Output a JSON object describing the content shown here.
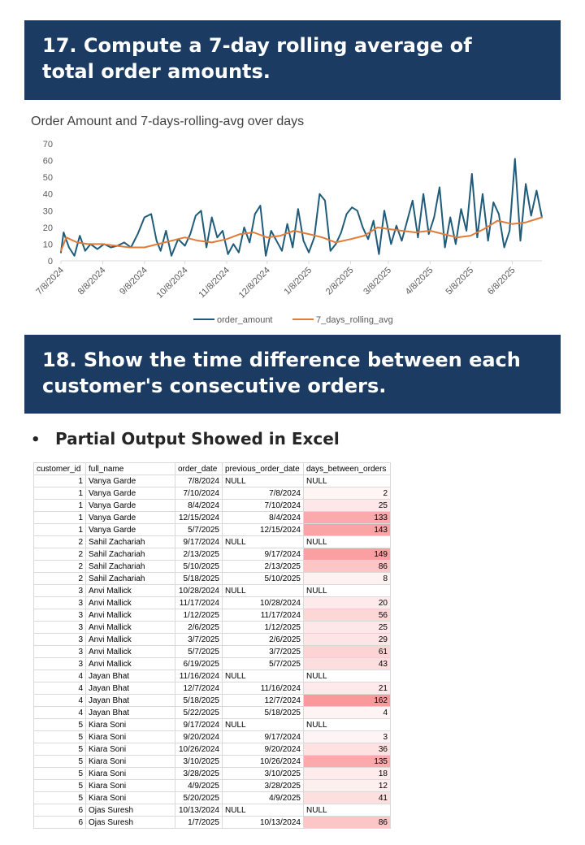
{
  "section17": {
    "title_line1": "17. Compute a 7-day rolling average of",
    "title_line2": "total order amounts."
  },
  "section18": {
    "title_line1": "18. Show the time difference between each",
    "title_line2": "customer's consecutive orders."
  },
  "bullet": {
    "symbol": "•",
    "text": "Partial Output Showed in Excel"
  },
  "colors": {
    "banner_bg": "#1b3b63",
    "order_amount": "#1f5c7a",
    "rolling_avg": "#e07b39",
    "heat_max": "#f8696b"
  },
  "chart_data": {
    "type": "line",
    "title": "Order Amount and 7-days-rolling-avg over days",
    "xlabel": "",
    "ylabel": "",
    "ylim": [
      0,
      70
    ],
    "y_ticks": [
      "0",
      "10",
      "20",
      "30",
      "40",
      "50",
      "60",
      "70"
    ],
    "x_tick_labels": [
      "7/8/2024",
      "8/8/2024",
      "9/8/2024",
      "10/8/2024",
      "11/8/2024",
      "12/8/2024",
      "1/8/2025",
      "2/8/2025",
      "3/8/2025",
      "4/8/2025",
      "5/8/2025",
      "6/8/2025"
    ],
    "x_range": [
      "7/8/2024",
      "6/30/2025"
    ],
    "legend_position": "bottom",
    "series": [
      {
        "name": "order_amount",
        "color": "#1f5c7a",
        "x": [
          "7/8/2024",
          "7/10/2024",
          "7/14/2024",
          "7/18/2024",
          "7/22/2024",
          "7/26/2024",
          "7/30/2024",
          "8/4/2024",
          "8/9/2024",
          "8/14/2024",
          "8/19/2024",
          "8/24/2024",
          "8/29/2024",
          "9/3/2024",
          "9/8/2024",
          "9/13/2024",
          "9/17/2024",
          "9/20/2024",
          "9/24/2024",
          "9/28/2024",
          "10/3/2024",
          "10/8/2024",
          "10/12/2024",
          "10/16/2024",
          "10/20/2024",
          "10/24/2024",
          "10/28/2024",
          "11/1/2024",
          "11/5/2024",
          "11/9/2024",
          "11/13/2024",
          "11/17/2024",
          "11/21/2024",
          "11/25/2024",
          "11/29/2024",
          "12/3/2024",
          "12/7/2024",
          "12/11/2024",
          "12/15/2024",
          "12/19/2024",
          "12/23/2024",
          "12/27/2024",
          "12/31/2024",
          "1/4/2025",
          "1/8/2025",
          "1/12/2025",
          "1/16/2025",
          "1/20/2025",
          "1/24/2025",
          "1/28/2025",
          "2/1/2025",
          "2/5/2025",
          "2/9/2025",
          "2/13/2025",
          "2/17/2025",
          "2/21/2025",
          "2/25/2025",
          "3/1/2025",
          "3/5/2025",
          "3/10/2025",
          "3/14/2025",
          "3/18/2025",
          "3/22/2025",
          "3/26/2025",
          "3/30/2025",
          "4/3/2025",
          "4/7/2025",
          "4/11/2025",
          "4/15/2025",
          "4/19/2025",
          "4/23/2025",
          "4/27/2025",
          "5/1/2025",
          "5/5/2025",
          "5/9/2025",
          "5/13/2025",
          "5/17/2025",
          "5/21/2025",
          "5/25/2025",
          "5/29/2025",
          "6/2/2025",
          "6/6/2025",
          "6/10/2025",
          "6/14/2025",
          "6/18/2025",
          "6/22/2025",
          "6/26/2025",
          "6/30/2025"
        ],
        "values": [
          5,
          17,
          8,
          3,
          15,
          6,
          10,
          7,
          10,
          8,
          9,
          11,
          8,
          16,
          26,
          28,
          12,
          6,
          18,
          3,
          13,
          9,
          16,
          27,
          30,
          8,
          26,
          14,
          18,
          4,
          10,
          5,
          20,
          11,
          28,
          33,
          3,
          18,
          12,
          6,
          22,
          8,
          31,
          12,
          5,
          14,
          40,
          36,
          6,
          10,
          17,
          28,
          32,
          30,
          20,
          13,
          24,
          4,
          30,
          10,
          21,
          12,
          24,
          36,
          14,
          40,
          16,
          26,
          44,
          8,
          26,
          10,
          31,
          18,
          52,
          14,
          40,
          12,
          35,
          28,
          8,
          18,
          61,
          12,
          46,
          27,
          42,
          26
        ]
      },
      {
        "name": "7_days_rolling_avg",
        "color": "#e07b39",
        "x": [
          "7/8/2024",
          "7/12/2024",
          "7/20/2024",
          "7/28/2024",
          "8/8/2024",
          "8/18/2024",
          "8/28/2024",
          "9/8/2024",
          "9/18/2024",
          "9/28/2024",
          "10/8/2024",
          "10/18/2024",
          "10/28/2024",
          "11/8/2024",
          "11/18/2024",
          "11/28/2024",
          "12/8/2024",
          "12/18/2024",
          "12/28/2024",
          "1/8/2025",
          "1/18/2025",
          "1/28/2025",
          "2/8/2025",
          "2/18/2025",
          "2/28/2025",
          "3/8/2025",
          "3/18/2025",
          "3/28/2025",
          "4/8/2025",
          "4/18/2025",
          "4/28/2025",
          "5/8/2025",
          "5/18/2025",
          "5/28/2025",
          "6/8/2025",
          "6/18/2025",
          "6/30/2025"
        ],
        "values": [
          6,
          14,
          11,
          10,
          10,
          9,
          8,
          8,
          10,
          12,
          14,
          12,
          11,
          13,
          16,
          17,
          14,
          15,
          18,
          16,
          14,
          11,
          13,
          15,
          20,
          19,
          18,
          17,
          18,
          16,
          14,
          15,
          19,
          24,
          22,
          23,
          26
        ]
      }
    ]
  },
  "table": {
    "columns": [
      "customer_id",
      "full_name",
      "order_date",
      "previous_order_date",
      "days_between_orders"
    ],
    "rows": [
      [
        "1",
        "Vanya Garde",
        "7/8/2024",
        "NULL",
        "NULL"
      ],
      [
        "1",
        "Vanya Garde",
        "7/10/2024",
        "7/8/2024",
        "2"
      ],
      [
        "1",
        "Vanya Garde",
        "8/4/2024",
        "7/10/2024",
        "25"
      ],
      [
        "1",
        "Vanya Garde",
        "12/15/2024",
        "8/4/2024",
        "133"
      ],
      [
        "1",
        "Vanya Garde",
        "5/7/2025",
        "12/15/2024",
        "143"
      ],
      [
        "2",
        "Sahil Zachariah",
        "9/17/2024",
        "NULL",
        "NULL"
      ],
      [
        "2",
        "Sahil Zachariah",
        "2/13/2025",
        "9/17/2024",
        "149"
      ],
      [
        "2",
        "Sahil Zachariah",
        "5/10/2025",
        "2/13/2025",
        "86"
      ],
      [
        "2",
        "Sahil Zachariah",
        "5/18/2025",
        "5/10/2025",
        "8"
      ],
      [
        "3",
        "Anvi Mallick",
        "10/28/2024",
        "NULL",
        "NULL"
      ],
      [
        "3",
        "Anvi Mallick",
        "11/17/2024",
        "10/28/2024",
        "20"
      ],
      [
        "3",
        "Anvi Mallick",
        "1/12/2025",
        "11/17/2024",
        "56"
      ],
      [
        "3",
        "Anvi Mallick",
        "2/6/2025",
        "1/12/2025",
        "25"
      ],
      [
        "3",
        "Anvi Mallick",
        "3/7/2025",
        "2/6/2025",
        "29"
      ],
      [
        "3",
        "Anvi Mallick",
        "5/7/2025",
        "3/7/2025",
        "61"
      ],
      [
        "3",
        "Anvi Mallick",
        "6/19/2025",
        "5/7/2025",
        "43"
      ],
      [
        "4",
        "Jayan Bhat",
        "11/16/2024",
        "NULL",
        "NULL"
      ],
      [
        "4",
        "Jayan Bhat",
        "12/7/2024",
        "11/16/2024",
        "21"
      ],
      [
        "4",
        "Jayan Bhat",
        "5/18/2025",
        "12/7/2024",
        "162"
      ],
      [
        "4",
        "Jayan Bhat",
        "5/22/2025",
        "5/18/2025",
        "4"
      ],
      [
        "5",
        "Kiara Soni",
        "9/17/2024",
        "NULL",
        "NULL"
      ],
      [
        "5",
        "Kiara Soni",
        "9/20/2024",
        "9/17/2024",
        "3"
      ],
      [
        "5",
        "Kiara Soni",
        "10/26/2024",
        "9/20/2024",
        "36"
      ],
      [
        "5",
        "Kiara Soni",
        "3/10/2025",
        "10/26/2024",
        "135"
      ],
      [
        "5",
        "Kiara Soni",
        "3/28/2025",
        "3/10/2025",
        "18"
      ],
      [
        "5",
        "Kiara Soni",
        "4/9/2025",
        "3/28/2025",
        "12"
      ],
      [
        "5",
        "Kiara Soni",
        "5/20/2025",
        "4/9/2025",
        "41"
      ],
      [
        "6",
        "Ojas Suresh",
        "10/13/2024",
        "NULL",
        "NULL"
      ],
      [
        "6",
        "Ojas Suresh",
        "1/7/2025",
        "10/13/2024",
        "86"
      ]
    ]
  }
}
